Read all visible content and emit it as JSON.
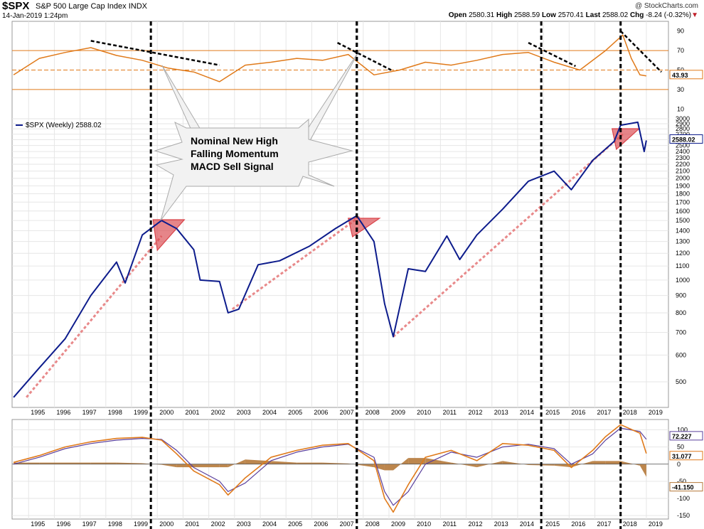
{
  "header": {
    "symbol": "$SPX",
    "name": "S&P 500 Large Cap Index",
    "exchange": "INDX",
    "timestamp": "14-Jan-2019 1:24pm",
    "brand": "@ StockCharts.com",
    "open_label": "Open",
    "open": "2580.31",
    "high_label": "High",
    "high": "2588.59",
    "low_label": "Low",
    "low": "2570.41",
    "last_label": "Last",
    "last": "2588.02",
    "chg_label": "Chg",
    "chg": "-8.24 (-0.32%)",
    "chg_arrow": "▼"
  },
  "annotation": {
    "lines": [
      "Nominal New High",
      "Falling Momentum",
      "MACD Sell Signal"
    ]
  },
  "legend": {
    "series_label": "$SPX (Weekly) 2588.02"
  },
  "colors": {
    "price": "#0d1c8c",
    "rsi": "#e07a1a",
    "macd_line": "#e07a1a",
    "signal_line": "#5a3f9c",
    "histogram": "#b5793a",
    "trendline": "#e8898a",
    "momentum_trend": "#000000",
    "marker_fill": "#d9434a",
    "grid": "#e6e6e6"
  },
  "chart_data": [
    {
      "type": "line",
      "panel": "rsi",
      "title": "",
      "x": [
        "1994-06",
        "1995-06",
        "1996-06",
        "1997-06",
        "1998-06",
        "1999-06",
        "2000-06",
        "2001-06",
        "2002-06",
        "2003-06",
        "2004-06",
        "2005-06",
        "2006-06",
        "2007-06",
        "2008-06",
        "2009-06",
        "2010-06",
        "2011-06",
        "2012-06",
        "2013-06",
        "2014-06",
        "2015-06",
        "2016-06",
        "2017-06",
        "2018-02",
        "2018-06",
        "2018-10",
        "2019-01"
      ],
      "series": [
        {
          "values": [
            45,
            62,
            68,
            73,
            65,
            60,
            52,
            48,
            38,
            55,
            58,
            62,
            60,
            66,
            45,
            50,
            58,
            55,
            60,
            66,
            68,
            58,
            50,
            70,
            86,
            62,
            45,
            43.93
          ]
        }
      ],
      "yticks": [
        10,
        30,
        50,
        70,
        90
      ],
      "ylim": [
        0,
        100
      ],
      "reference_lines": [
        30,
        50,
        70
      ],
      "last_value_label": "43.93"
    },
    {
      "type": "line",
      "panel": "price",
      "scale": "log",
      "x": [
        "1994-06",
        "1995-06",
        "1996-06",
        "1997-06",
        "1998-06",
        "1998-10",
        "1999-06",
        "2000-03",
        "2000-10",
        "2001-06",
        "2001-09",
        "2002-06",
        "2002-10",
        "2003-03",
        "2003-12",
        "2004-10",
        "2005-12",
        "2006-12",
        "2007-10",
        "2008-06",
        "2008-11",
        "2009-03",
        "2009-10",
        "2010-06",
        "2011-04",
        "2011-10",
        "2012-06",
        "2013-06",
        "2014-06",
        "2015-06",
        "2016-02",
        "2016-12",
        "2017-10",
        "2018-01",
        "2018-09",
        "2018-12",
        "2019-01"
      ],
      "series": [
        {
          "name": "$SPX (Weekly) 2588.02",
          "values": [
            450,
            550,
            670,
            900,
            1130,
            980,
            1360,
            1500,
            1420,
            1230,
            1000,
            990,
            800,
            820,
            1110,
            1140,
            1260,
            1420,
            1550,
            1300,
            850,
            680,
            1080,
            1060,
            1350,
            1150,
            1360,
            1620,
            1960,
            2100,
            1850,
            2260,
            2570,
            2870,
            2930,
            2400,
            2588.02
          ]
        }
      ],
      "ylabel": "",
      "yticks": [
        500,
        600,
        700,
        800,
        900,
        1000,
        1100,
        1200,
        1300,
        1400,
        1500,
        1600,
        1700,
        1800,
        1900,
        2000,
        2100,
        2200,
        2300,
        2400,
        2500,
        2600,
        2700,
        2800,
        2900,
        3000
      ],
      "ylim": [
        420,
        3000
      ],
      "last_value_label": "2588.02",
      "trendlines": [
        {
          "from": [
            "1994-12",
            450
          ],
          "to": [
            "2000-03",
            1350
          ]
        },
        {
          "from": [
            "2002-12",
            820
          ],
          "to": [
            "2007-12",
            1550
          ]
        },
        {
          "from": [
            "2009-03",
            680
          ],
          "to": [
            "2018-02",
            2700
          ]
        }
      ],
      "markers": [
        "2000-03",
        "2007-10",
        "2018-01"
      ]
    },
    {
      "type": "line",
      "panel": "macd",
      "x": [
        "1994-06",
        "1995-06",
        "1996-06",
        "1997-06",
        "1998-06",
        "1999-06",
        "2000-03",
        "2000-10",
        "2001-06",
        "2002-06",
        "2002-10",
        "2003-06",
        "2004-06",
        "2005-06",
        "2006-06",
        "2007-06",
        "2008-06",
        "2008-11",
        "2009-03",
        "2009-10",
        "2010-06",
        "2011-06",
        "2012-06",
        "2013-06",
        "2014-06",
        "2015-06",
        "2016-02",
        "2016-12",
        "2017-06",
        "2018-01",
        "2018-10",
        "2019-01"
      ],
      "series": [
        {
          "name": "MACD",
          "values": [
            5,
            25,
            50,
            65,
            75,
            78,
            70,
            30,
            -20,
            -60,
            -90,
            -40,
            20,
            40,
            55,
            60,
            10,
            -100,
            -140,
            -60,
            20,
            40,
            10,
            60,
            55,
            40,
            -10,
            40,
            80,
            115,
            90,
            31.077
          ]
        },
        {
          "name": "Signal",
          "values": [
            0,
            20,
            45,
            60,
            70,
            75,
            72,
            40,
            -10,
            -50,
            -80,
            -55,
            10,
            35,
            50,
            58,
            20,
            -80,
            -120,
            -80,
            0,
            35,
            20,
            50,
            58,
            45,
            0,
            30,
            70,
            105,
            95,
            72.227
          ]
        }
      ],
      "yticks": [
        -150,
        -100,
        -50,
        0,
        50,
        100
      ],
      "ylim": [
        -160,
        130
      ],
      "last_value_labels": [
        "72.227",
        "31.077",
        "-41.150"
      ]
    }
  ],
  "x_axis": {
    "years": [
      "1995",
      "1996",
      "1997",
      "1998",
      "1999",
      "2000",
      "2001",
      "2002",
      "2003",
      "2004",
      "2005",
      "2006",
      "2007",
      "2008",
      "2009",
      "2010",
      "2011",
      "2012",
      "2013",
      "2014",
      "2015",
      "2016",
      "2017",
      "2018",
      "2019"
    ]
  },
  "vertical_markers": [
    "1999-10",
    "2007-10",
    "2014-12",
    "2018-01"
  ]
}
